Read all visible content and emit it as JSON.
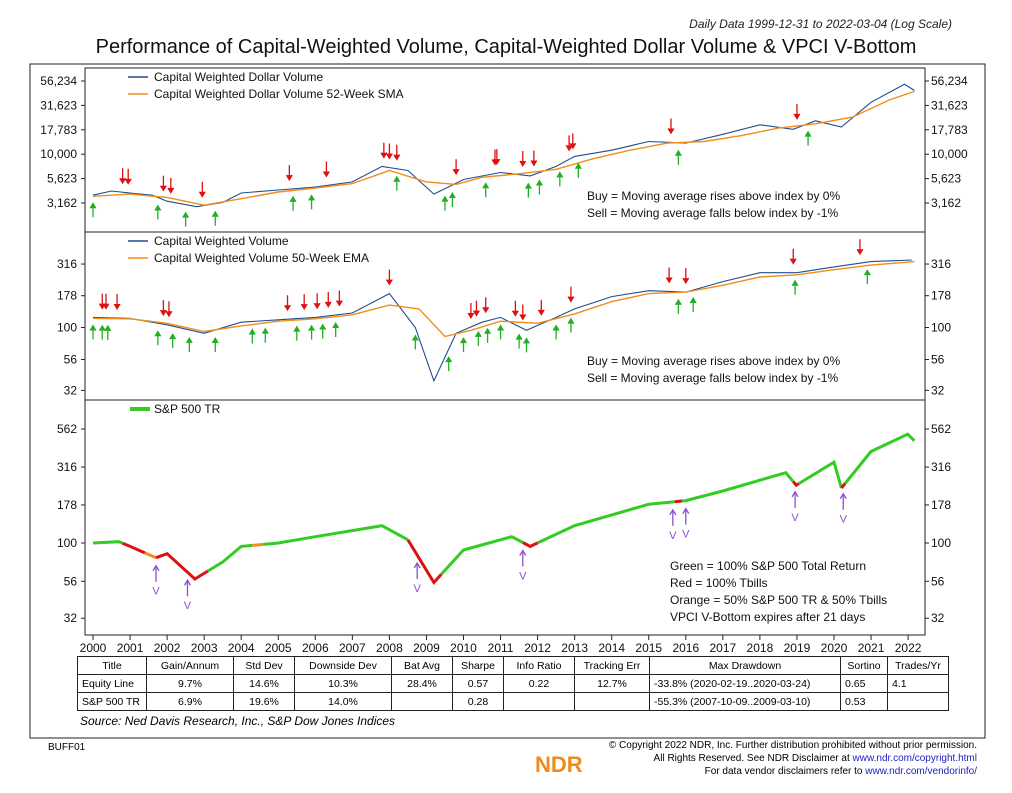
{
  "subtitle": "Daily Data 1999-12-31 to 2022-03-04 (Log Scale)",
  "title": "Performance of Capital-Weighted Volume, Capital-Weighted Dollar Volume & VPCI V-Bottom",
  "colors": {
    "index": "#1f4e8c",
    "ma": "#f28c1c",
    "buy": "#22b022",
    "sell": "#e01010",
    "vbottom": "#8a4fd0",
    "green": "#33cc22",
    "red": "#dd1111",
    "orange": "#f28c1c"
  },
  "chart_data": [
    {
      "type": "line",
      "scale": "log",
      "ylim": [
        2500,
        70000
      ],
      "yticks": [
        56234,
        31623,
        17783,
        10000,
        5623,
        3162
      ],
      "ytick_labels": [
        "56,234",
        "31,623",
        "17,783",
        "10,000",
        "5,623",
        "3,162"
      ],
      "legend": [
        "Capital Weighted Dollar Volume",
        "Capital Weighted Dollar Volume 52-Week SMA"
      ],
      "legend_position": "top-left",
      "notes": [
        "Buy = Moving average rises above index by 0%",
        "Sell = Moving average falls below index by -1%"
      ],
      "series": [
        {
          "name": "Capital Weighted Dollar Volume",
          "x": [
            2000,
            2000.5,
            2001,
            2001.6,
            2002,
            2002.8,
            2003.5,
            2004,
            2005,
            2006,
            2007,
            2007.8,
            2008.5,
            2009.2,
            2010,
            2011,
            2011.8,
            2012.5,
            2013,
            2014,
            2015,
            2016,
            2017,
            2018,
            2018.9,
            2019.5,
            2020.2,
            2021,
            2021.9,
            2022.17
          ],
          "y": [
            3800,
            4200,
            4000,
            3800,
            3300,
            2900,
            3200,
            4000,
            4300,
            4600,
            5200,
            7500,
            6800,
            3900,
            5500,
            6500,
            6000,
            7500,
            9500,
            11000,
            13500,
            13000,
            16000,
            20000,
            18000,
            22000,
            19000,
            34000,
            52000,
            45000
          ]
        },
        {
          "name": "Capital Weighted Dollar Volume 52-Week SMA",
          "x": [
            2000,
            2001,
            2002,
            2003,
            2004,
            2005,
            2006,
            2007,
            2008,
            2009,
            2009.8,
            2010.5,
            2011.5,
            2012.5,
            2013.5,
            2014.5,
            2015.5,
            2016.5,
            2017.5,
            2018.5,
            2019.5,
            2020.5,
            2021.5,
            2022.17
          ],
          "y": [
            3700,
            3900,
            3600,
            3000,
            3500,
            4100,
            4500,
            5000,
            6800,
            5200,
            4900,
            5800,
            6300,
            7000,
            9000,
            11000,
            13000,
            13500,
            15500,
            18500,
            20500,
            24000,
            36000,
            44000
          ]
        }
      ],
      "sell_signals": [
        2000.8,
        2000.95,
        2001.9,
        2002.1,
        2002.95,
        2005.3,
        2006.3,
        2007.85,
        2008.0,
        2008.2,
        2009.8,
        2010.85,
        2010.9,
        2011.6,
        2011.9,
        2012.85,
        2012.95,
        2015.6,
        2019.0
      ],
      "buy_signals": [
        2000.0,
        2001.75,
        2002.5,
        2003.3,
        2005.4,
        2005.9,
        2008.2,
        2009.5,
        2009.7,
        2010.6,
        2011.75,
        2012.05,
        2012.6,
        2013.1,
        2015.8,
        2019.3
      ]
    },
    {
      "type": "line",
      "scale": "log",
      "ylim": [
        28,
        400
      ],
      "yticks": [
        316,
        178,
        100,
        56,
        32
      ],
      "ytick_labels": [
        "316",
        "178",
        "100",
        "56",
        "32"
      ],
      "legend": [
        "Capital Weighted Volume",
        "Capital Weighted Volume 50-Week EMA"
      ],
      "legend_position": "top-left",
      "notes": [
        "Buy = Moving average rises above index by 0%",
        "Sell = Moving average falls below index by -1%"
      ],
      "series": [
        {
          "name": "Capital Weighted Volume",
          "x": [
            2000,
            2001,
            2002,
            2003,
            2004,
            2005,
            2006,
            2007,
            2008,
            2008.7,
            2009.2,
            2009.8,
            2010.5,
            2011,
            2011.7,
            2012.5,
            2013,
            2014,
            2015,
            2016,
            2017,
            2018,
            2019,
            2020,
            2021,
            2022.1
          ],
          "y": [
            120,
            118,
            105,
            90,
            110,
            115,
            120,
            130,
            185,
            100,
            38,
            90,
            110,
            120,
            95,
            120,
            140,
            175,
            195,
            190,
            230,
            270,
            270,
            300,
            330,
            340
          ]
        },
        {
          "name": "Capital Weighted Volume 50-Week EMA",
          "x": [
            2000,
            2001,
            2002,
            2003,
            2004,
            2005,
            2006,
            2007,
            2008,
            2008.8,
            2009.5,
            2010.2,
            2011,
            2012,
            2013,
            2014,
            2015,
            2016,
            2017,
            2018,
            2019,
            2020,
            2021,
            2022.17
          ],
          "y": [
            118,
            117,
            108,
            93,
            103,
            112,
            117,
            126,
            150,
            140,
            85,
            95,
            112,
            108,
            128,
            160,
            185,
            190,
            215,
            250,
            260,
            285,
            310,
            330
          ]
        }
      ],
      "sell_signals": [
        2000.25,
        2000.35,
        2000.65,
        2001.9,
        2002.05,
        2005.25,
        2005.7,
        2006.05,
        2006.35,
        2006.65,
        2008.0,
        2010.2,
        2010.35,
        2010.6,
        2011.4,
        2011.6,
        2012.1,
        2012.9,
        2015.55,
        2016.0,
        2018.9,
        2020.7
      ],
      "buy_signals": [
        2000.0,
        2000.25,
        2000.4,
        2001.75,
        2002.15,
        2002.6,
        2003.3,
        2004.3,
        2004.65,
        2005.5,
        2005.9,
        2006.2,
        2006.55,
        2008.7,
        2009.6,
        2010.0,
        2010.4,
        2010.65,
        2011.0,
        2011.5,
        2011.7,
        2012.5,
        2012.9,
        2015.8,
        2016.2,
        2018.95,
        2020.9
      ]
    },
    {
      "type": "line",
      "scale": "log",
      "ylim": [
        28,
        650
      ],
      "yticks": [
        562,
        316,
        178,
        100,
        56,
        32
      ],
      "ytick_labels": [
        "562",
        "316",
        "178",
        "100",
        "56",
        "32"
      ],
      "legend": [
        "S&P 500 TR"
      ],
      "legend_position": "top-left",
      "notes": [
        "Green = 100% S&P 500 Total Return",
        "Red = 100% Tbills",
        "Orange = 50% S&P 500 TR & 50% Tbills",
        "VPCI V-Bottom expires after 21 days"
      ],
      "series": [
        {
          "name": "S&P 500 TR",
          "x": [
            2000,
            2000.7,
            2001,
            2001.7,
            2002,
            2002.75,
            2003.5,
            2004,
            2005,
            2006,
            2007.8,
            2008.5,
            2009.2,
            2010,
            2011.3,
            2011.8,
            2013,
            2015,
            2016,
            2017,
            2018.7,
            2018.98,
            2020,
            2020.2,
            2021,
            2021.99,
            2022.17
          ],
          "y": [
            100,
            102,
            95,
            80,
            85,
            58,
            75,
            95,
            100,
            110,
            130,
            105,
            55,
            90,
            110,
            95,
            130,
            180,
            190,
            220,
            290,
            240,
            340,
            230,
            400,
            520,
            470
          ]
        }
      ],
      "regimes": [
        {
          "from": 2000,
          "to": 2000.8,
          "state": "green"
        },
        {
          "from": 2000.8,
          "to": 2001.4,
          "state": "red"
        },
        {
          "from": 2001.4,
          "to": 2001.7,
          "state": "orange"
        },
        {
          "from": 2001.7,
          "to": 2003.1,
          "state": "red"
        },
        {
          "from": 2003.1,
          "to": 2004.3,
          "state": "green"
        },
        {
          "from": 2004.3,
          "to": 2004.6,
          "state": "orange"
        },
        {
          "from": 2004.6,
          "to": 2008.5,
          "state": "green"
        },
        {
          "from": 2008.5,
          "to": 2009.4,
          "state": "red"
        },
        {
          "from": 2009.4,
          "to": 2011.6,
          "state": "green"
        },
        {
          "from": 2011.6,
          "to": 2012.0,
          "state": "red"
        },
        {
          "from": 2012.0,
          "to": 2015.7,
          "state": "green"
        },
        {
          "from": 2015.7,
          "to": 2015.9,
          "state": "red"
        },
        {
          "from": 2015.9,
          "to": 2018.9,
          "state": "green"
        },
        {
          "from": 2018.9,
          "to": 2019.05,
          "state": "red"
        },
        {
          "from": 2019.05,
          "to": 2020.2,
          "state": "green"
        },
        {
          "from": 2020.2,
          "to": 2020.3,
          "state": "red"
        },
        {
          "from": 2020.3,
          "to": 2022.17,
          "state": "green"
        }
      ],
      "vbottom_signals": [
        2001.7,
        2002.55,
        2008.75,
        2011.6,
        2015.65,
        2016.0,
        2018.95,
        2020.25
      ],
      "vbottom_label": "V"
    }
  ],
  "xaxis": {
    "ticks": [
      "2000",
      "2001",
      "2002",
      "2003",
      "2004",
      "2005",
      "2006",
      "2007",
      "2008",
      "2009",
      "2010",
      "2011",
      "2012",
      "2013",
      "2014",
      "2015",
      "2016",
      "2017",
      "2018",
      "2019",
      "2020",
      "2021",
      "2022"
    ]
  },
  "table": {
    "headers": [
      "Title",
      "Gain/Annum",
      "Std Dev",
      "Downside Dev",
      "Bat Avg",
      "Sharpe",
      "Info Ratio",
      "Tracking Err",
      "Max Drawdown",
      "Sortino",
      "Trades/Yr"
    ],
    "rows": [
      [
        "Equity Line",
        "9.7%",
        "14.6%",
        "10.3%",
        "28.4%",
        "0.57",
        "0.22",
        "12.7%",
        "-33.8% (2020-02-19..2020-03-24)",
        "0.65",
        "4.1"
      ],
      [
        "S&P 500 TR",
        "6.9%",
        "19.6%",
        "14.0%",
        "",
        "0.28",
        "",
        "",
        "-55.3% (2007-10-09..2009-03-10)",
        "0.53",
        ""
      ]
    ]
  },
  "source": "Source:   Ned Davis Research, Inc., S&P Dow Jones Indices",
  "code": "BUFF01",
  "logo": "NDR",
  "copyright": {
    "line1": "© Copyright 2022 NDR, Inc. Further distribution prohibited without prior permission.",
    "line2": "All Rights Reserved. See NDR Disclaimer at ",
    "link1": "www.ndr.com/copyright.html",
    "line3": "For data vendor disclaimers refer to ",
    "link2": "www.ndr.com/vendorinfo/"
  }
}
